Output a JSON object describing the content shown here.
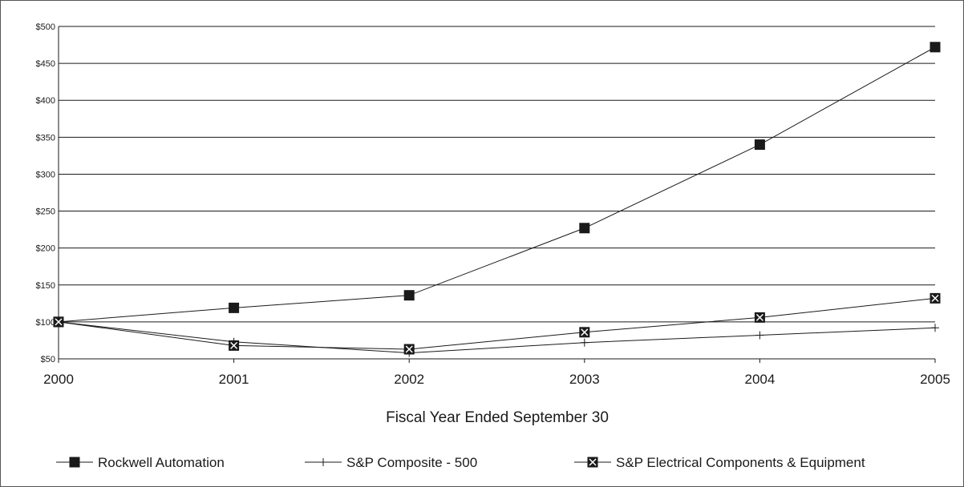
{
  "chart_data": {
    "type": "line",
    "title": "",
    "xlabel": "Fiscal Year Ended September 30",
    "ylabel": "",
    "categories": [
      "2000",
      "2001",
      "2002",
      "2003",
      "2004",
      "2005"
    ],
    "ylim": [
      50,
      500
    ],
    "yticks": [
      50,
      100,
      150,
      200,
      250,
      300,
      350,
      400,
      450,
      500
    ],
    "ytick_labels": [
      "$50",
      "$100",
      "$150",
      "$200",
      "$250",
      "$300",
      "$350",
      "$400",
      "$450",
      "$500"
    ],
    "grid": true,
    "legend_position": "bottom",
    "series": [
      {
        "name": "Rockwell Automation",
        "marker": "filled-square",
        "values": [
          100,
          119,
          136,
          227,
          340,
          472
        ]
      },
      {
        "name": "S&P Composite - 500",
        "marker": "plus",
        "values": [
          100,
          73,
          58,
          72,
          82,
          92
        ]
      },
      {
        "name": "S&P Electrical Components & Equipment",
        "marker": "x-square",
        "values": [
          100,
          68,
          63,
          86,
          106,
          132
        ]
      }
    ]
  }
}
